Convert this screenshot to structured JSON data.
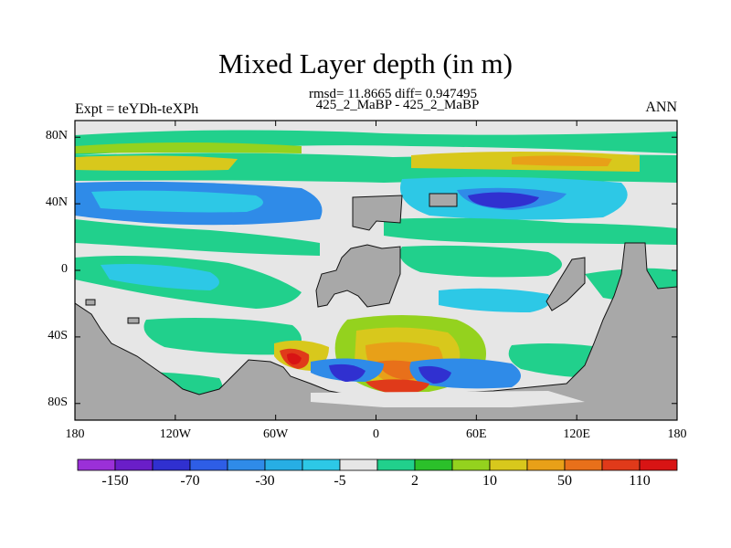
{
  "title": "Mixed Layer depth (in m)",
  "stats": "rmsd= 11.8665 diff= 0.947495",
  "experiment_pair": "425_2_MaBP - 425_2_MaBP",
  "experiment": "Expt = teYDh-teXPh",
  "season": "ANN",
  "map": {
    "projection": "cylindrical-equidistant",
    "lon_range": [
      -180,
      180
    ],
    "lat_range": [
      -90,
      90
    ],
    "land_color": "#a8a8a8",
    "lat_ticks": [
      {
        "lat": 80,
        "label": "80N"
      },
      {
        "lat": 40,
        "label": "40N"
      },
      {
        "lat": 0,
        "label": "0"
      },
      {
        "lat": -40,
        "label": "40S"
      },
      {
        "lat": -80,
        "label": "80S"
      }
    ],
    "lon_ticks": [
      {
        "lon": -180,
        "label": "180"
      },
      {
        "lon": -120,
        "label": "120W"
      },
      {
        "lon": -60,
        "label": "60W"
      },
      {
        "lon": 0,
        "label": "0"
      },
      {
        "lon": 60,
        "label": "60E"
      },
      {
        "lon": 120,
        "label": "120E"
      },
      {
        "lon": 180,
        "label": "180"
      }
    ]
  },
  "colorbar": {
    "colors": [
      "#9b30d8",
      "#6a1ec8",
      "#3030d0",
      "#2e5ee6",
      "#2f8be8",
      "#27aee4",
      "#2dc8e6",
      "#e6e6e6",
      "#21d08c",
      "#2bc02a",
      "#94d21e",
      "#d8c81c",
      "#e8a018",
      "#e8701a",
      "#e03a1a",
      "#d81414"
    ],
    "labels": [
      "-150",
      "-70",
      "-30",
      "-5",
      "2",
      "10",
      "50",
      "110"
    ]
  }
}
